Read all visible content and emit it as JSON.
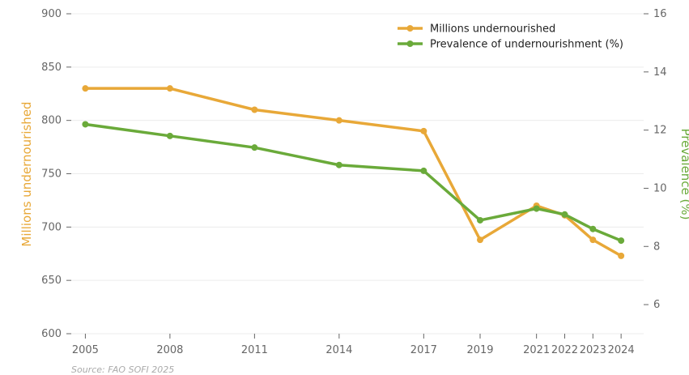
{
  "chart_data": {
    "type": "line",
    "x": [
      2005,
      2008,
      2011,
      2014,
      2017,
      2019,
      2021,
      2022,
      2023,
      2024
    ],
    "series": [
      {
        "name": "Millions undernourished",
        "axis": "left",
        "color": "#E8A838",
        "values": [
          830,
          830,
          810,
          800,
          790,
          688,
          720,
          711,
          688,
          673
        ]
      },
      {
        "name": "Prevalence of undernourishment (%)",
        "axis": "right",
        "color": "#6AAA3A",
        "values": [
          12.2,
          11.8,
          11.4,
          10.8,
          10.6,
          8.9,
          9.3,
          9.1,
          8.6,
          8.2
        ]
      }
    ],
    "ylabel": "Millions undernourished",
    "ylabel_color": "#E8A838",
    "ylim": [
      600,
      900
    ],
    "yticks": [
      "600",
      "650",
      "700",
      "750",
      "800",
      "850",
      "900"
    ],
    "y2label": "Prevalence (%)",
    "y2label_color": "#6AAA3A",
    "y2lim": [
      5,
      16
    ],
    "y2ticks": [
      "6",
      "8",
      "10",
      "12",
      "14",
      "16"
    ],
    "xticks": [
      "2005",
      "2008",
      "2011",
      "2014",
      "2017",
      "2019",
      "2021",
      "2022",
      "2023",
      "2024"
    ],
    "grid": true,
    "legend_position": "top-right",
    "source": "Source: FAO SOFI 2025"
  }
}
